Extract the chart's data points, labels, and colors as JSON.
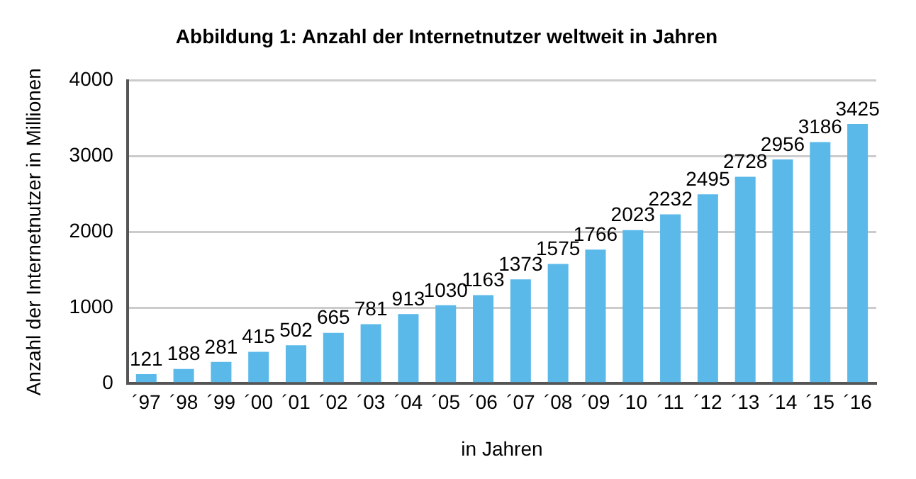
{
  "chart_data": {
    "type": "bar",
    "title": "Abbildung 1: Anzahl der Internetnutzer weltweit in Jahren",
    "xlabel": "in Jahren",
    "ylabel": "Anzahl der Internetnutzer in Millionen",
    "categories": [
      "´97",
      "´98",
      "´99",
      "´00",
      "´01",
      "´02",
      "´03",
      "´04",
      "´05",
      "´06",
      "´07",
      "´08",
      "´09",
      "´10",
      "´11",
      "´12",
      "´13",
      "´14",
      "´15",
      "´16"
    ],
    "values": [
      121,
      188,
      281,
      415,
      502,
      665,
      781,
      913,
      1030,
      1163,
      1373,
      1575,
      1766,
      2023,
      2232,
      2495,
      2728,
      2956,
      3186,
      3425
    ],
    "color": "#5bb9ea",
    "ylim": [
      0,
      4000
    ],
    "yticks": [
      0,
      1000,
      2000,
      3000,
      4000
    ],
    "grid": "y",
    "data_labels": true
  }
}
